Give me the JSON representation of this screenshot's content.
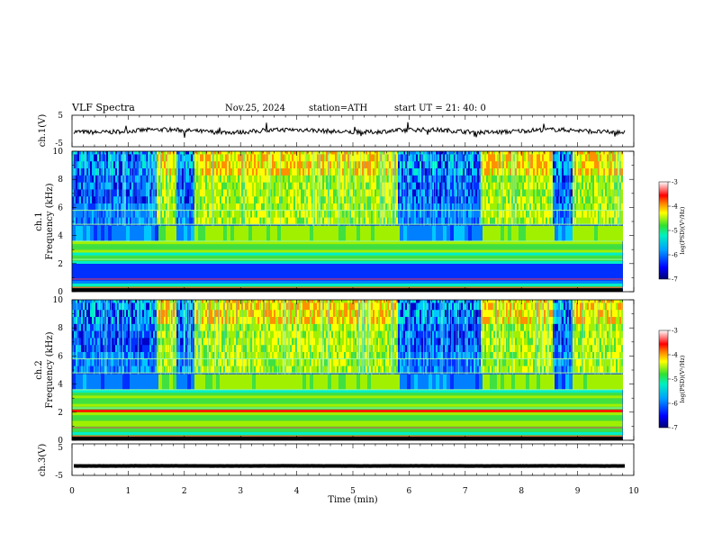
{
  "header": {
    "title": "VLF  Spectra",
    "date": "Nov.25, 2024",
    "station": "station=ATH",
    "start": "start  UT  =   21: 40: 0"
  },
  "chart_data": [
    {
      "id": "ch1-waveform",
      "type": "line",
      "ylabel": "ch.1(V)",
      "ylim": [
        -5,
        5
      ],
      "y_ticks": [
        "5",
        "-5"
      ],
      "xlim": [
        0,
        10
      ],
      "trace_level": 0,
      "trace_stroke": "#000000"
    },
    {
      "id": "ch1-spectrogram",
      "type": "heatmap",
      "ylabel_channel": "ch.1",
      "ylabel": "Frequency (kHz)",
      "ylim": [
        0,
        10
      ],
      "y_ticks": [
        "0",
        "2",
        "4",
        "6",
        "8",
        "10"
      ],
      "xlim": [
        0,
        9.8
      ],
      "bursts_min": [
        [
          1.5,
          1.85
        ],
        [
          2.15,
          5.8
        ],
        [
          7.25,
          8.55
        ],
        [
          8.9,
          9.8
        ]
      ],
      "colorbar": {
        "label": "log(PSD)(V²/Hz)",
        "range": [
          -7,
          -3
        ],
        "ticks": [
          "-3",
          "-4",
          "-5",
          "-6",
          "-7"
        ]
      }
    },
    {
      "id": "ch2-spectrogram",
      "type": "heatmap",
      "ylabel_channel": "ch.2",
      "ylabel": "Frequency (kHz)",
      "ylim": [
        0,
        10
      ],
      "y_ticks": [
        "0",
        "2",
        "4",
        "6",
        "8",
        "10"
      ],
      "xlim": [
        0,
        9.8
      ],
      "bursts_min": [
        [
          1.5,
          1.85
        ],
        [
          2.15,
          5.8
        ],
        [
          7.25,
          8.55
        ],
        [
          8.9,
          9.8
        ]
      ],
      "colorbar": {
        "label": "log(PSD)(V²/Hz)",
        "range": [
          -7,
          -3
        ],
        "ticks": [
          "-3",
          "-4",
          "-5",
          "-6",
          "-7"
        ]
      }
    },
    {
      "id": "ch3-waveform",
      "type": "line",
      "ylabel": "ch.3(V)",
      "ylim": [
        -5,
        5
      ],
      "y_ticks": [
        "5",
        "-5"
      ],
      "xlim": [
        0,
        10
      ],
      "trace_level": -2,
      "trace_stroke": "#000000"
    }
  ],
  "x_axis": {
    "label": "Time  (min)",
    "range": [
      0,
      10
    ],
    "ticks": [
      "0",
      "1",
      "2",
      "3",
      "4",
      "5",
      "6",
      "7",
      "8",
      "9",
      "10"
    ]
  }
}
